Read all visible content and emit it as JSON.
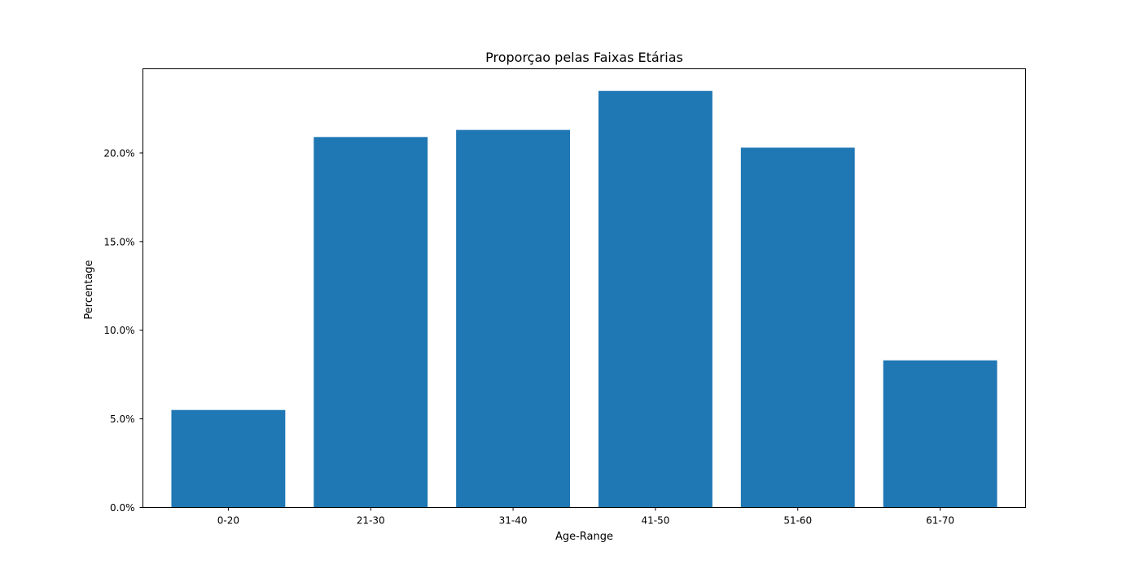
{
  "chart_data": {
    "type": "bar",
    "title": "Proporçao pelas Faixas Etárias",
    "xlabel": "Age-Range",
    "ylabel": "Percentage",
    "categories": [
      "0-20",
      "21-30",
      "31-40",
      "41-50",
      "51-60",
      "61-70"
    ],
    "values": [
      5.5,
      20.9,
      21.3,
      23.5,
      20.3,
      8.3
    ],
    "ylim": [
      0,
      24.75
    ],
    "yticks": [
      0,
      5,
      10,
      15,
      20
    ],
    "ytick_labels": [
      "0.0%",
      "5.0%",
      "10.0%",
      "15.0%",
      "20.0%"
    ],
    "bar_color": "#1f77b4",
    "grid": false,
    "legend": "none"
  }
}
